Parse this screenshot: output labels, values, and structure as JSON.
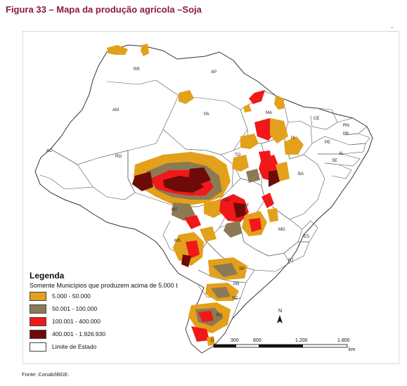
{
  "figure": {
    "title": "Figura 33 – Mapa da produção agrícola –Soja",
    "source": "Fonte: Conab/IBGE."
  },
  "legend": {
    "title": "Legenda",
    "subtitle": "Somente Municípios que produzem acima de 5.000 t",
    "items": [
      {
        "label": "5.000 - 50.000",
        "color": "#e3a01a"
      },
      {
        "label": "50.001 - 100.000",
        "color": "#8c7a55"
      },
      {
        "label": "100.001 - 400.000",
        "color": "#f01818"
      },
      {
        "label": "400.001 - 1.926.930",
        "color": "#6e0a0a"
      },
      {
        "label": "Limite de Estado",
        "color": "#ffffff"
      }
    ]
  },
  "states": {
    "rr": "RR",
    "ap": "AP",
    "am": "AM",
    "pa": "PA",
    "ma": "MA",
    "ce": "CE",
    "rn": "RN",
    "pb": "PB",
    "pe": "PE",
    "al": "AL",
    "se": "SE",
    "pi": "PI",
    "ac": "AC",
    "ro": "RO",
    "to": "TO",
    "ba": "BA",
    "mt": "MT",
    "go": "GO",
    "df": "DF",
    "mg": "MG",
    "es": "ES",
    "ms": "MS",
    "rj": "RJ",
    "sp": "SP",
    "pr": "PR",
    "sc": "SC",
    "rs": "RS"
  },
  "scale": {
    "ticks": [
      "0",
      "300",
      "600",
      "1.200",
      "1.800"
    ],
    "unit": "km"
  },
  "north": {
    "label": "N"
  }
}
